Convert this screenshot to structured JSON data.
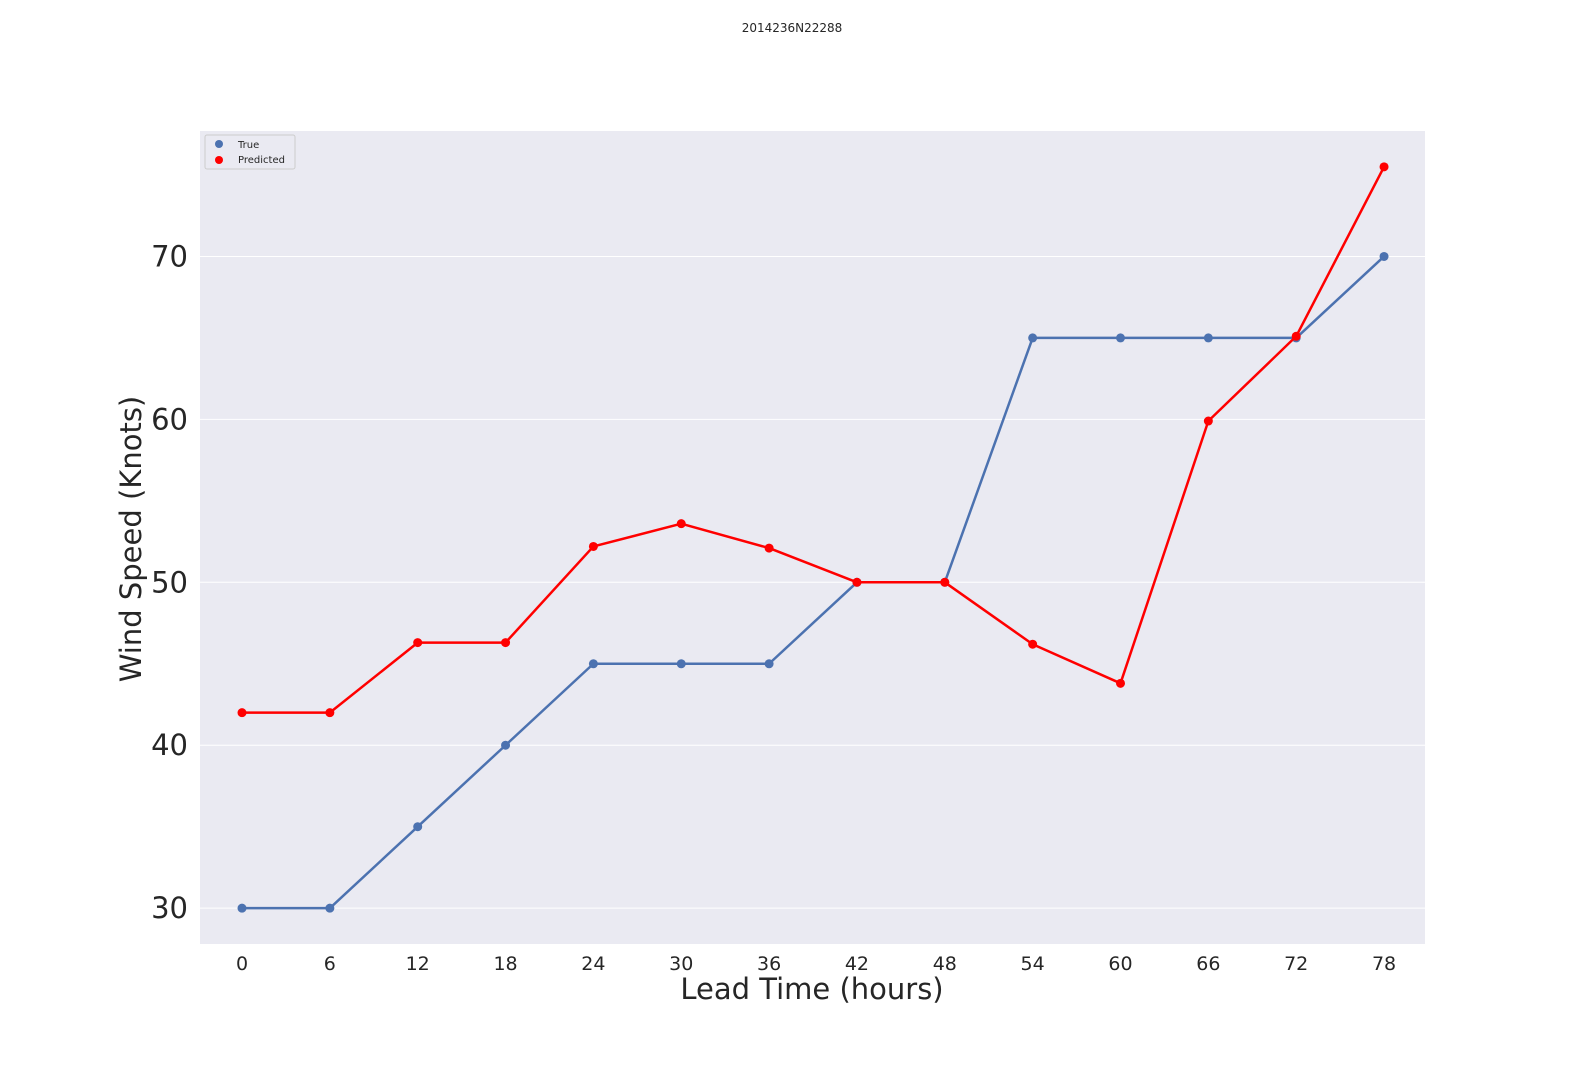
{
  "chart_data": {
    "type": "line",
    "title": "2014236N22288",
    "xlabel": "Lead Time (hours)",
    "ylabel": "Wind Speed (Knots)",
    "x": [
      0,
      6,
      12,
      18,
      24,
      30,
      36,
      42,
      48,
      54,
      60,
      66,
      72,
      78
    ],
    "x_tick_labels": [
      "0",
      "6",
      "12",
      "18",
      "24",
      "30",
      "36",
      "42",
      "48",
      "54",
      "60",
      "66",
      "72",
      "78"
    ],
    "yticks": [
      30,
      40,
      50,
      60,
      70
    ],
    "y_tick_labels": [
      "30",
      "40",
      "50",
      "60",
      "70"
    ],
    "ylim": [
      27.8,
      77.7
    ],
    "grid": true,
    "legend_position": "top-left",
    "series": [
      {
        "name": "True",
        "color": "#4c72b0",
        "values": [
          30,
          30,
          35,
          40,
          45,
          45,
          45,
          50,
          50,
          65,
          65,
          65,
          65,
          70
        ]
      },
      {
        "name": "Predicted",
        "color": "#ff0000",
        "values": [
          42.0,
          42.0,
          46.3,
          46.3,
          52.2,
          53.6,
          52.1,
          50.0,
          50.0,
          46.2,
          43.8,
          59.9,
          65.1,
          75.5
        ]
      }
    ],
    "background_color": "#eaeaf2",
    "grid_color": "#ffffff"
  }
}
